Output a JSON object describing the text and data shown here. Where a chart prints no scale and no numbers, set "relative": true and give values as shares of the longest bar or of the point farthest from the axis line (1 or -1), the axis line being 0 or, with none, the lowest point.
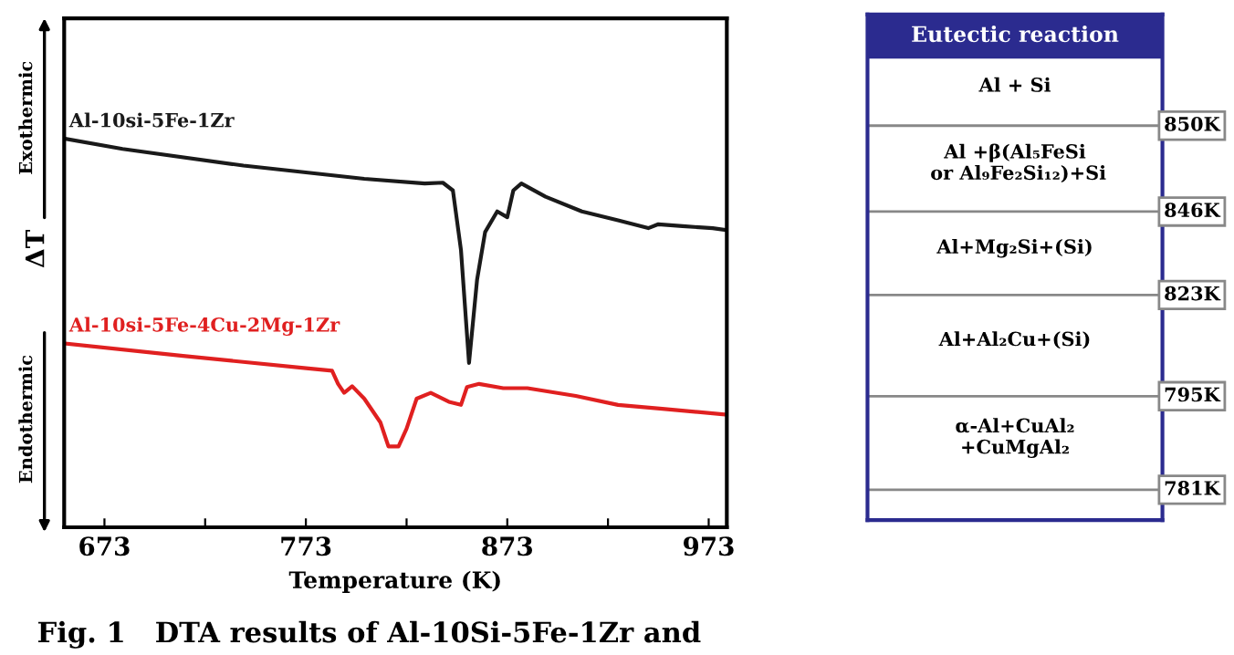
{
  "chart_data": [
    {
      "type": "line",
      "relative": true,
      "xlabel": "Temperature (K)",
      "ylabel": "ΔT",
      "xlim": [
        653,
        982
      ],
      "xticks": [
        673,
        {
          "value": 723,
          "label": null
        },
        773,
        {
          "value": 823,
          "label": null
        },
        873,
        {
          "value": 923,
          "label": null
        },
        973
      ],
      "tick_labels": "x",
      "grid": false,
      "legend": false,
      "marker": "none",
      "line_style": "solid",
      "series": [
        {
          "name": "Al-10si-5Fe-1Zr",
          "color": "#1a1a1a",
          "x": [
            653.5,
            682,
            742,
            802,
            832,
            841,
            846,
            850,
            854,
            858,
            862,
            868,
            873,
            876,
            880,
            892,
            910,
            928,
            943,
            948,
            960,
            975,
            982
          ],
          "values": [
            1.0,
            0.974,
            0.931,
            0.897,
            0.885,
            0.887,
            0.867,
            0.714,
            0.423,
            0.637,
            0.76,
            0.813,
            0.798,
            0.867,
            0.885,
            0.851,
            0.813,
            0.79,
            0.77,
            0.78,
            0.775,
            0.77,
            0.765
          ]
        },
        {
          "name": "Al-10si-5Fe-4Cu-2Mg-1Zr",
          "color": "#e02020",
          "x": [
            653.5,
            712,
            772,
            786,
            789,
            792,
            796,
            802,
            810,
            814,
            819,
            823,
            828,
            835,
            844,
            850,
            853,
            859,
            871,
            883,
            907,
            928,
            950,
            982
          ],
          "values": [
            0.473,
            0.441,
            0.41,
            0.403,
            0.369,
            0.346,
            0.363,
            0.331,
            0.27,
            0.208,
            0.208,
            0.254,
            0.331,
            0.346,
            0.323,
            0.315,
            0.361,
            0.369,
            0.358,
            0.358,
            0.338,
            0.315,
            0.305,
            0.29
          ]
        }
      ],
      "annotations": [
        "Exothermic",
        "Endothermic",
        "Fig. 1   DTA results of Al-10Si-5Fe-1Zr and"
      ]
    },
    {
      "type": "other",
      "title": "Eutectic reaction",
      "categories": [
        "Al + Si",
        "Al +β(Al₅FeSi\n or Al₉Fe₂Si₁₂)+Si",
        "Al+Mg₂Si+(Si)",
        "Al+Al₂Cu+(Si)",
        "α-Al+CuAl₂\n+CuMgAl₂"
      ],
      "annotations": [
        "850K",
        "846K",
        "823K",
        "795K",
        "781K"
      ]
    }
  ]
}
